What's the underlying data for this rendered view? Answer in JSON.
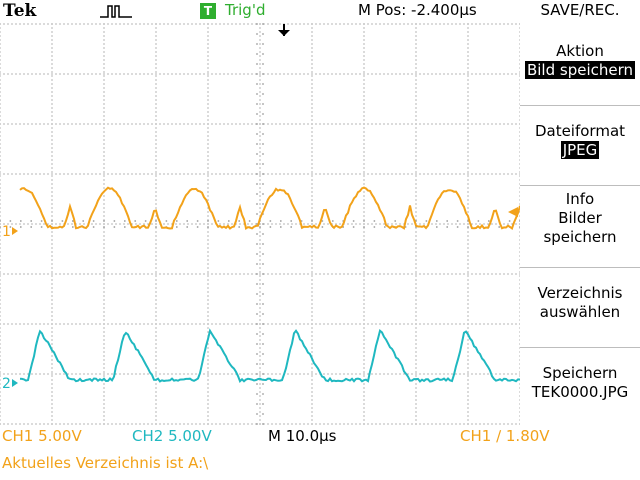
{
  "header": {
    "brand": "Tek",
    "trigger_badge": "T",
    "trigger_status": "Trig'd",
    "m_pos": "M Pos: -2.400µs",
    "menu_title": "SAVE/REC."
  },
  "side_menu": {
    "aktion_label": "Aktion",
    "aktion_value": "Bild speichern",
    "format_label": "Dateiformat",
    "format_value": "JPEG",
    "info_line1": "Info",
    "info_line2": "Bilder",
    "info_line3": "speichern",
    "dir_line1": "Verzeichnis",
    "dir_line2": "auswählen",
    "save_line1": "Speichern",
    "save_line2": "TEK0000.JPG"
  },
  "footer": {
    "ch1_scale": "CH1  5.00V",
    "ch2_scale": "CH2  5.00V",
    "timebase": "M 10.0µs",
    "trigger_level": "CH1  ∕  1.80V",
    "status_message": "Aktuelles Verzeichnis ist A:\\"
  },
  "channel_markers": {
    "ch1": "1",
    "ch2": "2"
  },
  "colors": {
    "ch1": "#f2a21a",
    "ch2": "#1fb8c0",
    "trigger": "#2fae2f",
    "graticule": "#9a9a9a"
  }
}
